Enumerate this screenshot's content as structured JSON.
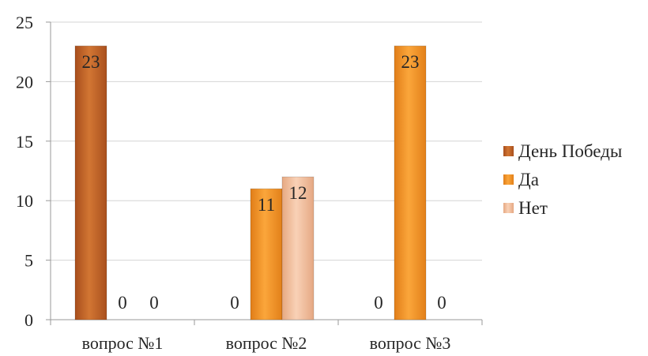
{
  "chart_data": {
    "type": "bar",
    "categories": [
      "вопрос №1",
      "вопрос №2",
      "вопрос №3"
    ],
    "series": [
      {
        "name": "День Победы",
        "values": [
          23,
          0,
          0
        ],
        "color": "#C0632A"
      },
      {
        "name": "Да",
        "values": [
          0,
          11,
          23
        ],
        "color": "#F39A2E"
      },
      {
        "name": "Нет",
        "values": [
          0,
          12,
          0
        ],
        "color": "#F2BE9B"
      }
    ],
    "ylim": [
      0,
      25
    ],
    "yticks": [
      0,
      5,
      10,
      15,
      20,
      25
    ],
    "grid": true,
    "legend_position": "right",
    "data_labels": true
  }
}
